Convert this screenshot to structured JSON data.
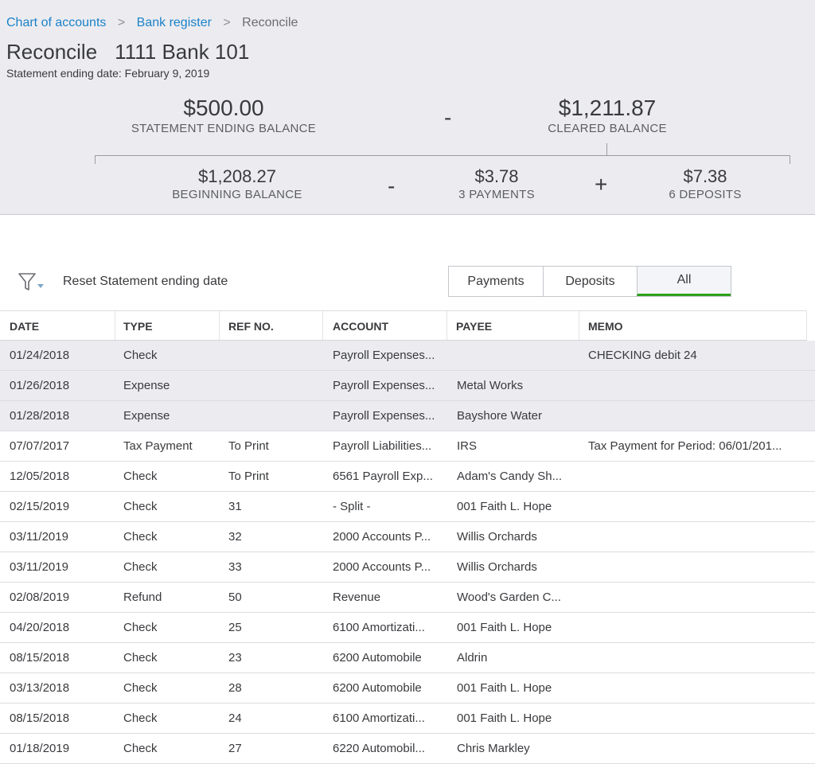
{
  "breadcrumb": {
    "chart_of_accounts": "Chart of accounts",
    "bank_register": "Bank register",
    "current": "Reconcile",
    "separator": ">"
  },
  "title": {
    "label": "Reconcile",
    "account": "1111 Bank 101"
  },
  "statement_date": "Statement ending date: February 9, 2019",
  "balances": {
    "statement_ending": {
      "amount": "$500.00",
      "label": "STATEMENT ENDING BALANCE"
    },
    "minus_top": "-",
    "cleared": {
      "amount": "$1,211.87",
      "label": "CLEARED BALANCE"
    },
    "beginning": {
      "amount": "$1,208.27",
      "label": "BEGINNING BALANCE"
    },
    "minus_bottom": "-",
    "payments": {
      "amount": "$3.78",
      "label": "3 PAYMENTS"
    },
    "plus": "+",
    "deposits": {
      "amount": "$7.38",
      "label": "6 DEPOSITS"
    }
  },
  "toolbar": {
    "filter_icon": "filter-icon",
    "reset_label": "Reset Statement ending date",
    "tabs": [
      "Payments",
      "Deposits",
      "All"
    ],
    "active_tab": "All"
  },
  "table": {
    "columns": [
      "DATE",
      "TYPE",
      "REF NO.",
      "ACCOUNT",
      "PAYEE",
      "MEMO"
    ],
    "rows": [
      {
        "checked": true,
        "date": "01/24/2018",
        "type": "Check",
        "ref": "",
        "account": "Payroll Expenses...",
        "payee": "",
        "memo": "CHECKING debit 24"
      },
      {
        "checked": true,
        "date": "01/26/2018",
        "type": "Expense",
        "ref": "",
        "account": "Payroll Expenses...",
        "payee": "Metal Works",
        "memo": ""
      },
      {
        "checked": true,
        "date": "01/28/2018",
        "type": "Expense",
        "ref": "",
        "account": "Payroll Expenses...",
        "payee": "Bayshore Water",
        "memo": ""
      },
      {
        "checked": false,
        "date": "07/07/2017",
        "type": "Tax Payment",
        "ref": "To Print",
        "account": "Payroll Liabilities...",
        "payee": "IRS",
        "memo": "Tax Payment for Period: 06/01/201..."
      },
      {
        "checked": false,
        "date": "12/05/2018",
        "type": "Check",
        "ref": "To Print",
        "account": "6561 Payroll Exp...",
        "payee": "Adam's Candy Sh...",
        "memo": ""
      },
      {
        "checked": false,
        "date": "02/15/2019",
        "type": "Check",
        "ref": "31",
        "account": "- Split -",
        "payee": "001 Faith L. Hope",
        "memo": ""
      },
      {
        "checked": false,
        "date": "03/11/2019",
        "type": "Check",
        "ref": "32",
        "account": "2000 Accounts P...",
        "payee": "Willis Orchards",
        "memo": ""
      },
      {
        "checked": false,
        "date": "03/11/2019",
        "type": "Check",
        "ref": "33",
        "account": "2000 Accounts P...",
        "payee": "Willis Orchards",
        "memo": ""
      },
      {
        "checked": false,
        "date": "02/08/2019",
        "type": "Refund",
        "ref": "50",
        "account": "Revenue",
        "payee": "Wood's Garden C...",
        "memo": ""
      },
      {
        "checked": false,
        "date": "04/20/2018",
        "type": "Check",
        "ref": "25",
        "account": "6100 Amortizati...",
        "payee": "001 Faith L. Hope",
        "memo": ""
      },
      {
        "checked": false,
        "date": "08/15/2018",
        "type": "Check",
        "ref": "23",
        "account": "6200 Automobile",
        "payee": "Aldrin",
        "memo": ""
      },
      {
        "checked": false,
        "date": "03/13/2018",
        "type": "Check",
        "ref": "28",
        "account": "6200 Automobile",
        "payee": "001 Faith L. Hope",
        "memo": ""
      },
      {
        "checked": false,
        "date": "08/15/2018",
        "type": "Check",
        "ref": "24",
        "account": "6100 Amortizati...",
        "payee": "001 Faith L. Hope",
        "memo": ""
      },
      {
        "checked": false,
        "date": "01/18/2019",
        "type": "Check",
        "ref": "27",
        "account": "6220 Automobil...",
        "payee": "Chris Markley",
        "memo": ""
      }
    ]
  },
  "colors": {
    "link": "#1b82c9",
    "active_tab_underline": "#2ca01c",
    "header_bg": "#ececf0",
    "checked_row_bg": "#ececf0"
  }
}
